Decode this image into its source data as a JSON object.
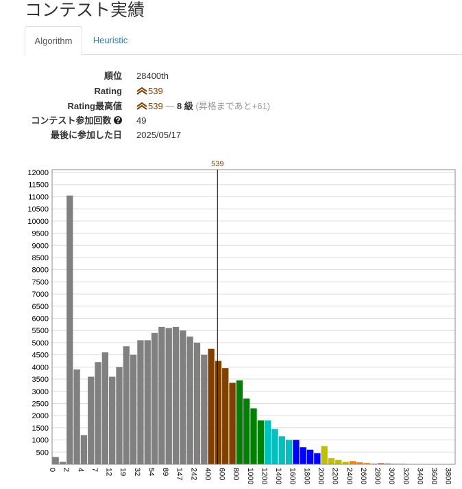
{
  "title": "コンテスト実績",
  "tabs": [
    "Algorithm",
    "Heuristic"
  ],
  "profile": {
    "rank": {
      "label": "順位",
      "value": "28400th"
    },
    "rating": {
      "label": "Rating",
      "value": "539"
    },
    "highest": {
      "label": "Rating最高値",
      "value": "539",
      "dash": "—",
      "grade": "8 級",
      "note": "(昇格まであと+61)"
    },
    "count": {
      "label": "コンテスト参加回数",
      "value": "49"
    },
    "last": {
      "label": "最後に参加した日",
      "value": "2025/05/17"
    }
  },
  "chart_data": {
    "type": "bar",
    "categories": [
      0,
      null,
      2,
      null,
      4,
      null,
      7,
      null,
      12,
      null,
      19,
      null,
      32,
      null,
      54,
      null,
      89,
      null,
      147,
      null,
      242,
      null,
      400,
      null,
      600,
      null,
      800,
      null,
      1000,
      null,
      1200,
      null,
      1400,
      null,
      1600,
      null,
      1800,
      null,
      2000,
      null,
      2200,
      null,
      2400,
      null,
      2600,
      null,
      2800,
      null,
      3000,
      null,
      3200,
      null,
      3400,
      null,
      3600,
      null,
      3800
    ],
    "values": [
      300,
      100,
      11050,
      3900,
      1200,
      3600,
      4200,
      4600,
      3600,
      4000,
      4850,
      4500,
      5100,
      5100,
      5400,
      5650,
      5600,
      5650,
      5500,
      5250,
      5000,
      4500,
      4750,
      4250,
      3950,
      3350,
      3450,
      2700,
      2300,
      1800,
      1800,
      1450,
      1150,
      1000,
      1000,
      700,
      600,
      450,
      750,
      250,
      180,
      100,
      130,
      80,
      50,
      30,
      40,
      30,
      20,
      20,
      15,
      10,
      10,
      10,
      10,
      10,
      10
    ],
    "colors": [
      "#808080",
      "#808080",
      "#808080",
      "#808080",
      "#808080",
      "#808080",
      "#808080",
      "#808080",
      "#808080",
      "#808080",
      "#808080",
      "#808080",
      "#808080",
      "#808080",
      "#808080",
      "#808080",
      "#808080",
      "#808080",
      "#808080",
      "#808080",
      "#808080",
      "#808080",
      "#804000",
      "#804000",
      "#804000",
      "#804000",
      "#008000",
      "#008000",
      "#008000",
      "#008000",
      "#00c0c0",
      "#00c0c0",
      "#00c0c0",
      "#00c0c0",
      "#0000ff",
      "#0000ff",
      "#0000ff",
      "#0000ff",
      "#c0c000",
      "#c0c000",
      "#c0c000",
      "#c0c000",
      "#ff8000",
      "#ff8000",
      "#ff8000",
      "#ff8000",
      "#ff0000",
      "#ff0000",
      "#ff0000",
      "#ff0000",
      "#ff0000",
      "#ff0000",
      "#ff0000",
      "#ff0000",
      "#ff0000",
      "#ff0000",
      "#ff0000"
    ],
    "ylim": [
      0,
      12000
    ],
    "yticks": [
      500,
      1000,
      1500,
      2000,
      2500,
      3000,
      3500,
      4000,
      4500,
      5000,
      5500,
      6000,
      6500,
      7000,
      7500,
      8000,
      8500,
      9000,
      9500,
      10000,
      10500,
      11000,
      11500,
      12000
    ],
    "grid": true,
    "marker": 539,
    "marker_color": "#804000"
  }
}
